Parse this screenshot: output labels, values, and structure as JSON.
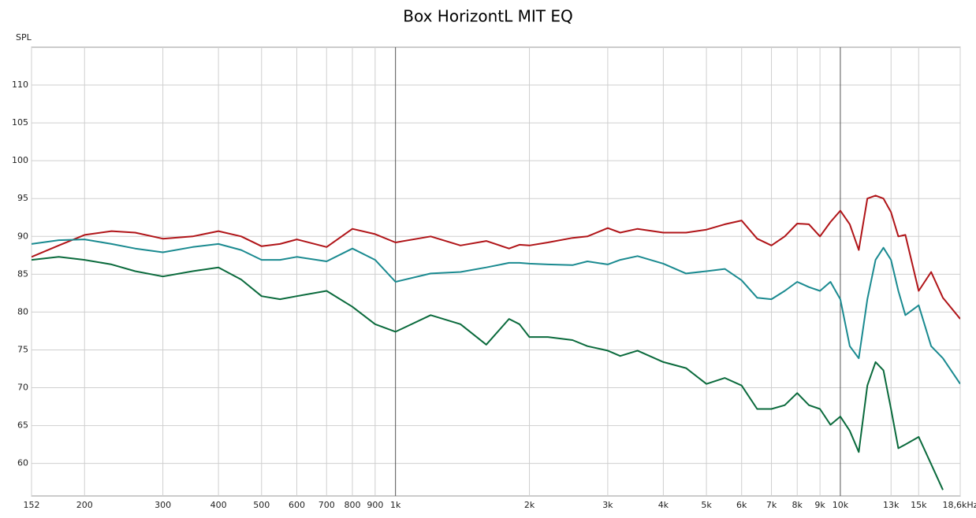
{
  "chart_data": {
    "type": "line",
    "title": "Box HorizontL MIT EQ",
    "y_label": "SPL",
    "x_scale": "log",
    "grid": true,
    "xlim": [
      152,
      18600
    ],
    "ylim": [
      55.7,
      115
    ],
    "xticks": [
      152,
      200,
      300,
      400,
      500,
      600,
      700,
      800,
      900,
      {
        "value": 1000,
        "label": "1k"
      },
      {
        "value": 2000,
        "label": "2k"
      },
      {
        "value": 3000,
        "label": "3k"
      },
      {
        "value": 4000,
        "label": "4k"
      },
      {
        "value": 5000,
        "label": "5k"
      },
      {
        "value": 6000,
        "label": "6k"
      },
      {
        "value": 7000,
        "label": "7k"
      },
      {
        "value": 8000,
        "label": "8k"
      },
      {
        "value": 9000,
        "label": "9k"
      },
      {
        "value": 10000,
        "label": "10k"
      },
      {
        "value": 13000,
        "label": "13k"
      },
      {
        "value": 15000,
        "label": "15k"
      },
      {
        "value": 18600,
        "label": "18,6kHz"
      }
    ],
    "yticks": [
      60,
      65,
      70,
      75,
      80,
      85,
      90,
      95,
      100,
      105,
      110
    ],
    "x": [
      152,
      175,
      200,
      230,
      260,
      300,
      350,
      400,
      450,
      500,
      550,
      600,
      700,
      800,
      900,
      1000,
      1200,
      1400,
      1600,
      1800,
      1900,
      2000,
      2200,
      2500,
      2700,
      3000,
      3200,
      3500,
      4000,
      4500,
      5000,
      5500,
      6000,
      6500,
      7000,
      7500,
      8000,
      8500,
      9000,
      9500,
      10000,
      10500,
      11000,
      11500,
      12000,
      12500,
      13000,
      13500,
      14000,
      15000,
      16000,
      17000,
      18600
    ],
    "series": [
      {
        "color": "#b01418",
        "values": [
          87.3,
          88.8,
          90.2,
          90.7,
          90.5,
          89.7,
          90.0,
          90.7,
          90.0,
          88.7,
          89.0,
          89.6,
          88.6,
          91.0,
          90.3,
          89.2,
          90.0,
          88.8,
          89.4,
          88.4,
          88.9,
          88.8,
          89.2,
          89.8,
          90.0,
          91.1,
          90.5,
          91.0,
          90.5,
          90.5,
          90.9,
          91.6,
          92.1,
          89.7,
          88.8,
          90.0,
          91.7,
          91.6,
          90.0,
          91.9,
          93.4,
          91.6,
          88.2,
          95.0,
          95.4,
          95.0,
          93.2,
          90.0,
          90.2,
          82.8,
          85.3,
          81.9,
          79.1
        ]
      },
      {
        "color": "#1a8a90",
        "values": [
          89.0,
          89.5,
          89.6,
          89.0,
          88.4,
          87.9,
          88.6,
          89.0,
          88.2,
          86.9,
          86.9,
          87.3,
          86.7,
          88.4,
          86.9,
          84.0,
          85.1,
          85.3,
          85.9,
          86.5,
          86.5,
          86.4,
          86.3,
          86.2,
          86.7,
          86.3,
          86.9,
          87.4,
          86.4,
          85.1,
          85.4,
          85.7,
          84.2,
          81.9,
          81.7,
          82.8,
          84.0,
          83.3,
          82.8,
          84.0,
          81.7,
          75.5,
          73.9,
          81.7,
          86.9,
          88.5,
          86.9,
          82.8,
          79.6,
          80.9,
          75.5,
          73.9,
          70.5
        ]
      },
      {
        "color": "#0a6a3c",
        "values": [
          86.9,
          87.3,
          86.9,
          86.3,
          85.4,
          84.7,
          85.4,
          85.9,
          84.3,
          82.1,
          81.7,
          82.1,
          82.8,
          80.7,
          78.4,
          77.4,
          79.6,
          78.4,
          75.7,
          79.1,
          78.4,
          76.7,
          76.7,
          76.3,
          75.5,
          74.9,
          74.2,
          74.9,
          73.4,
          72.6,
          70.5,
          71.3,
          70.3,
          67.2,
          67.2,
          67.7,
          69.3,
          67.7,
          67.2,
          65.1,
          66.2,
          64.3,
          61.5,
          70.3,
          73.4,
          72.3,
          67.2,
          62.0,
          62.5,
          63.5,
          59.9,
          56.5,
          null
        ]
      }
    ]
  }
}
